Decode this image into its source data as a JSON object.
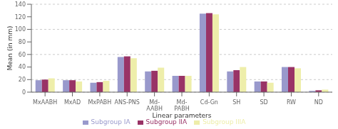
{
  "chart_data": {
    "type": "bar",
    "categories": [
      "MxAABH",
      "MxAD",
      "MxPABH",
      "ANS-PNS",
      "Md-\nAABH",
      "Md-\nPABH",
      "Cd-Gn",
      "SH",
      "SD",
      "RW",
      "ND"
    ],
    "series": [
      {
        "name": "Subgroup IA",
        "color": "#9999cc",
        "values": [
          19,
          19,
          15,
          56,
          33,
          26,
          125,
          33,
          17,
          40,
          2
        ]
      },
      {
        "name": "Subgroup IIA",
        "color": "#993366",
        "values": [
          20,
          19,
          16,
          57,
          34,
          26,
          126,
          35,
          17,
          40,
          3
        ]
      },
      {
        "name": "Subgroup IIIA",
        "color": "#eeeeaa",
        "values": [
          22,
          17,
          18,
          54,
          39,
          26,
          124,
          40,
          15,
          38,
          4
        ]
      }
    ],
    "ylabel": "Mean (in mm)",
    "xlabel": "Linear parameters",
    "ylim": [
      0,
      140
    ],
    "yticks": [
      0,
      20,
      40,
      60,
      80,
      100,
      120,
      140
    ],
    "grid": true,
    "legend": "bottom"
  }
}
